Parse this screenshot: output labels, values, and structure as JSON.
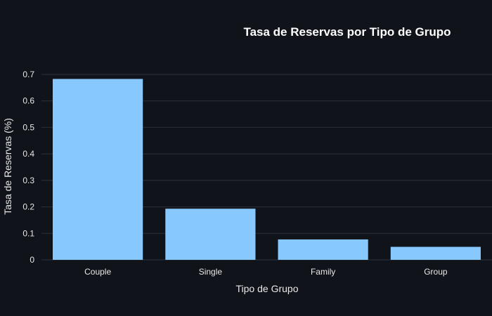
{
  "chart_data": {
    "type": "bar",
    "title": "Tasa de Reservas por Tipo de Grupo",
    "xlabel": "Tipo de Grupo",
    "ylabel": "Tasa de Reservas (%)",
    "categories": [
      "Couple",
      "Single",
      "Family",
      "Group"
    ],
    "values": [
      0.683,
      0.193,
      0.077,
      0.049
    ],
    "ylim": [
      0,
      0.7
    ],
    "yticks": [
      0,
      0.1,
      0.2,
      0.3,
      0.4,
      0.5,
      0.6,
      0.7
    ],
    "grid": true,
    "bar_color": "#87c9ff",
    "background": "#10131a"
  }
}
